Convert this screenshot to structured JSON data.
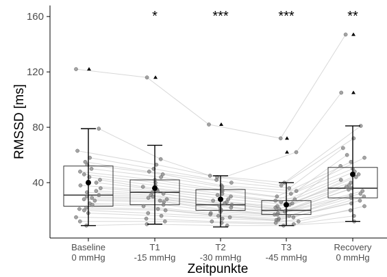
{
  "chart_data": {
    "type": "box",
    "ylabel": "RMSSD [ms]",
    "xlabel": "Zeitpunkte",
    "ylim": [
      0,
      168
    ],
    "yticks": [
      40,
      80,
      120,
      160
    ],
    "categories": [
      {
        "line1": "Baseline",
        "line2": "0 mmHg",
        "significance": ""
      },
      {
        "line1": "T1",
        "line2": "-15 mmHg",
        "significance": "*"
      },
      {
        "line1": "T2",
        "line2": "-30 mmHg",
        "significance": "***"
      },
      {
        "line1": "T3",
        "line2": "-45 mmHg",
        "significance": "***"
      },
      {
        "line1": "Recovery",
        "line2": "0 mmHg",
        "significance": "**"
      }
    ],
    "boxes": [
      {
        "q1": 23,
        "median": 31,
        "q3": 52,
        "mean": 40,
        "ci_low": 9,
        "ci_high": 79
      },
      {
        "q1": 24,
        "median": 33,
        "q3": 42,
        "mean": 36,
        "ci_low": 10,
        "ci_high": 67
      },
      {
        "q1": 20,
        "median": 24,
        "q3": 35,
        "mean": 28,
        "ci_low": 8,
        "ci_high": 45
      },
      {
        "q1": 17,
        "median": 20,
        "q3": 27,
        "mean": 24,
        "ci_low": 9,
        "ci_high": 40
      },
      {
        "q1": 29,
        "median": 36,
        "q3": 51,
        "mean": 46,
        "ci_low": 12,
        "ci_high": 81
      }
    ],
    "outliers": [
      {
        "cat": 0,
        "y": 122
      },
      {
        "cat": 1,
        "y": 116
      },
      {
        "cat": 2,
        "y": 82
      },
      {
        "cat": 3,
        "y": 72
      },
      {
        "cat": 3,
        "y": 62
      },
      {
        "cat": 4,
        "y": 147
      },
      {
        "cat": 4,
        "y": 105
      }
    ],
    "subjects": [
      [
        122,
        116,
        82,
        72,
        147
      ],
      [
        79,
        57,
        45,
        40,
        81
      ],
      [
        63,
        53,
        44,
        38,
        72
      ],
      [
        58,
        50,
        42,
        62,
        105
      ],
      [
        55,
        48,
        40,
        36,
        65
      ],
      [
        53,
        46,
        38,
        34,
        60
      ],
      [
        50,
        44,
        37,
        32,
        58
      ],
      [
        48,
        42,
        35,
        30,
        55
      ],
      [
        46,
        40,
        34,
        28,
        52
      ],
      [
        44,
        38,
        32,
        27,
        50
      ],
      [
        42,
        37,
        31,
        26,
        48
      ],
      [
        40,
        35,
        30,
        25,
        46
      ],
      [
        38,
        34,
        28,
        24,
        44
      ],
      [
        36,
        33,
        27,
        23,
        42
      ],
      [
        34,
        32,
        26,
        22,
        40
      ],
      [
        33,
        31,
        25,
        21,
        38
      ],
      [
        31,
        30,
        24,
        20,
        37
      ],
      [
        30,
        29,
        23,
        19,
        36
      ],
      [
        29,
        28,
        22,
        18,
        35
      ],
      [
        28,
        27,
        21,
        17,
        34
      ],
      [
        27,
        26,
        20,
        17,
        32
      ],
      [
        25,
        24,
        19,
        16,
        31
      ],
      [
        24,
        23,
        18,
        15,
        30
      ],
      [
        22,
        21,
        17,
        14,
        29
      ],
      [
        21,
        20,
        16,
        13,
        27
      ],
      [
        20,
        18,
        15,
        13,
        25
      ],
      [
        18,
        16,
        14,
        12,
        23
      ],
      [
        15,
        14,
        12,
        11,
        20
      ],
      [
        12,
        12,
        11,
        10,
        16
      ],
      [
        9,
        10,
        9,
        9,
        12
      ]
    ]
  }
}
